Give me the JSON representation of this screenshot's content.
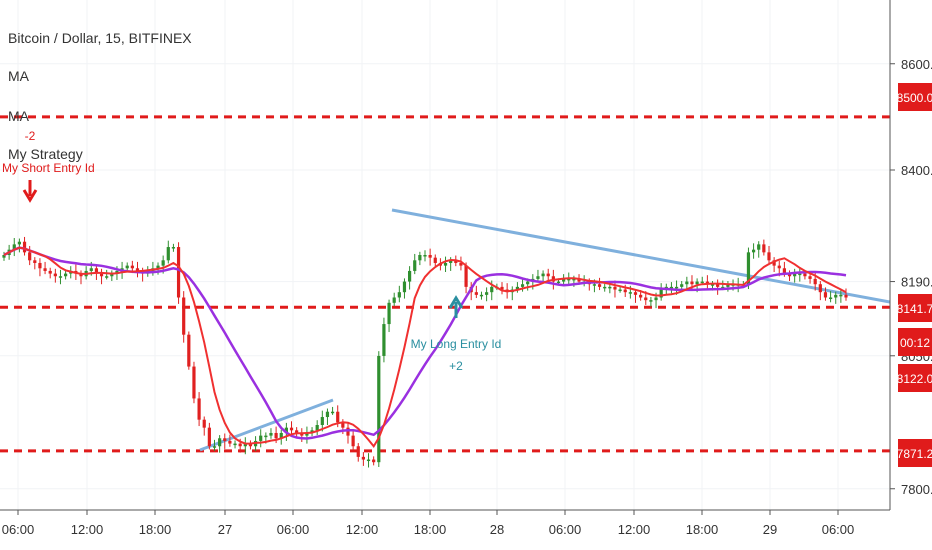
{
  "header": {
    "symbol_title": "Bitcoin / Dollar, 15, BITFINEX",
    "indicators": [
      "MA",
      "MA",
      "My Strategy"
    ]
  },
  "colors": {
    "background": "#ffffff",
    "up_candle": "#2f8f2f",
    "down_candle": "#e02020",
    "ma_fast": "#f03030",
    "ma_slow": "#9a30e0",
    "trendline": "#7fb0dd",
    "level_line": "#e01b1b",
    "price_tag_bg": "#e01b1b",
    "current_tag_bg": "#e01b1b",
    "short_signal": "#e01b1b",
    "long_signal": "#2a8fa0",
    "axis_text": "#333333",
    "grid": "#f1f3f6"
  },
  "chart_data": {
    "type": "candlestick",
    "title": "Bitcoin / Dollar, 15, BITFINEX",
    "x_ticks": [
      "06:00",
      "12:00",
      "18:00",
      "27",
      "06:00",
      "12:00",
      "18:00",
      "28",
      "06:00",
      "12:00",
      "18:00",
      "29",
      "06:00"
    ],
    "y_ticks": [
      "8600.0",
      "8400.0",
      "8190.0",
      "8050.3",
      "7800.0"
    ],
    "y_range": [
      7760,
      8720
    ],
    "price_tags": [
      {
        "label": "8500.0",
        "value": 8500
      },
      {
        "label": "8141.7",
        "value": 8141.7
      },
      {
        "label": "00:12",
        "value": 8160
      },
      {
        "label": "8122.0",
        "value": 8122
      },
      {
        "label": "7871.2",
        "value": 7871.2
      }
    ],
    "horizontal_levels": [
      8500,
      8141.7,
      7871.2
    ],
    "signals": [
      {
        "name": "My Short Entry Id",
        "qty": "-2",
        "direction": "short"
      },
      {
        "name": "My Long Entry Id",
        "qty": "+2",
        "direction": "long"
      }
    ],
    "candles_close": [
      8240,
      8250,
      8260,
      8265,
      8245,
      8230,
      8225,
      8215,
      8210,
      8205,
      8200,
      8200,
      8205,
      8210,
      8205,
      8200,
      8210,
      8215,
      8205,
      8200,
      8200,
      8205,
      8210,
      8215,
      8220,
      8215,
      8210,
      8205,
      8210,
      8215,
      8220,
      8230,
      8255,
      8255,
      8160,
      8090,
      8030,
      7970,
      7930,
      7915,
      7880,
      7880,
      7895,
      7890,
      7885,
      7885,
      7880,
      7885,
      7880,
      7890,
      7900,
      7900,
      7905,
      7895,
      7905,
      7915,
      7910,
      7905,
      7900,
      7905,
      7910,
      7920,
      7935,
      7945,
      7945,
      7925,
      7915,
      7900,
      7880,
      7860,
      7855,
      7855,
      7850,
      8050,
      8110,
      8150,
      8160,
      8170,
      8190,
      8210,
      8230,
      8240,
      8240,
      8235,
      8225,
      8220,
      8225,
      8230,
      8225,
      8220,
      8180,
      8170,
      8165,
      8165,
      8170,
      8180,
      8180,
      8175,
      8170,
      8175,
      8180,
      8185,
      8190,
      8195,
      8200,
      8205,
      8200,
      8190,
      8190,
      8195,
      8195,
      8195,
      8190,
      8190,
      8185,
      8185,
      8180,
      8180,
      8180,
      8175,
      8175,
      8170,
      8170,
      8165,
      8160,
      8155,
      8155,
      8160,
      8175,
      8180,
      8180,
      8180,
      8185,
      8190,
      8185,
      8190,
      8190,
      8185,
      8185,
      8180,
      8180,
      8185,
      8185,
      8185,
      8185,
      8245,
      8250,
      8260,
      8245,
      8230,
      8220,
      8215,
      8205,
      8200,
      8205,
      8205,
      8200,
      8195,
      8185,
      8170,
      8160,
      8160,
      8165,
      8165,
      8160
    ],
    "series": [
      {
        "name": "MA",
        "values_note": "fast"
      },
      {
        "name": "MA",
        "values_note": "slow"
      }
    ]
  }
}
